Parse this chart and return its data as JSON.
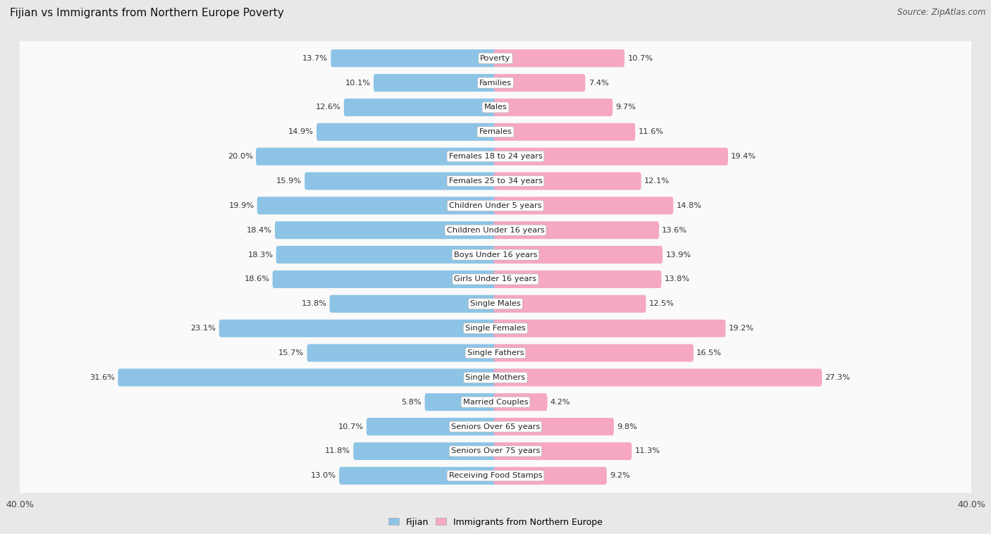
{
  "title": "Fijian vs Immigrants from Northern Europe Poverty",
  "source": "Source: ZipAtlas.com",
  "categories": [
    "Poverty",
    "Families",
    "Males",
    "Females",
    "Females 18 to 24 years",
    "Females 25 to 34 years",
    "Children Under 5 years",
    "Children Under 16 years",
    "Boys Under 16 years",
    "Girls Under 16 years",
    "Single Males",
    "Single Females",
    "Single Fathers",
    "Single Mothers",
    "Married Couples",
    "Seniors Over 65 years",
    "Seniors Over 75 years",
    "Receiving Food Stamps"
  ],
  "fijian": [
    13.7,
    10.1,
    12.6,
    14.9,
    20.0,
    15.9,
    19.9,
    18.4,
    18.3,
    18.6,
    13.8,
    23.1,
    15.7,
    31.6,
    5.8,
    10.7,
    11.8,
    13.0
  ],
  "immigrant": [
    10.7,
    7.4,
    9.7,
    11.6,
    19.4,
    12.1,
    14.8,
    13.6,
    13.9,
    13.8,
    12.5,
    19.2,
    16.5,
    27.3,
    4.2,
    9.8,
    11.3,
    9.2
  ],
  "fijian_color": "#8DC4E6",
  "immigrant_color": "#F5A8C0",
  "background_color": "#E8E8E8",
  "row_bg_color": "#FAFAFA",
  "axis_limit": 40.0,
  "legend_label_fijian": "Fijian",
  "legend_label_immigrant": "Immigrants from Northern Europe",
  "title_fontsize": 11,
  "source_fontsize": 8.5,
  "label_fontsize": 8.2,
  "value_fontsize": 8.2
}
